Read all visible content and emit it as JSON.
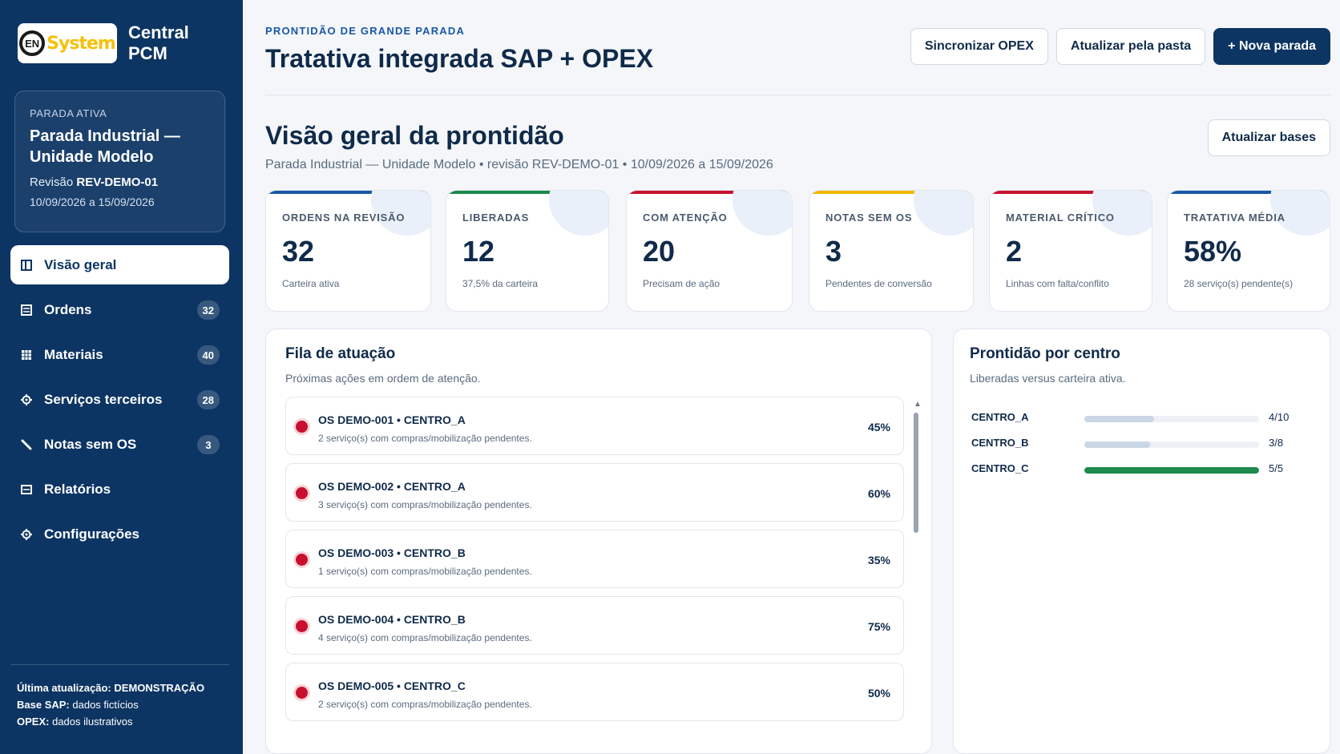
{
  "brand": {
    "logo_text": "System",
    "logo_mark": "EN",
    "title_line1": "Central",
    "title_line2": "PCM"
  },
  "active_stop": {
    "label": "PARADA ATIVA",
    "name": "Parada Industrial — Unidade Modelo",
    "revision_label": "Revisão",
    "revision": "REV-DEMO-01",
    "dates": "10/09/2026 a 15/09/2026"
  },
  "nav": {
    "items": [
      {
        "label": "Visão geral",
        "icon": "layout-icon",
        "badge": ""
      },
      {
        "label": "Ordens",
        "icon": "list-icon",
        "badge": "32"
      },
      {
        "label": "Materiais",
        "icon": "grid-icon",
        "badge": "40"
      },
      {
        "label": "Serviços terceiros",
        "icon": "gear-icon",
        "badge": "28"
      },
      {
        "label": "Notas sem OS",
        "icon": "pencil-icon",
        "badge": "3"
      },
      {
        "label": "Relatórios",
        "icon": "report-icon",
        "badge": ""
      },
      {
        "label": "Configurações",
        "icon": "gear-icon",
        "badge": ""
      }
    ]
  },
  "footer": {
    "update_label": "Última atualização:",
    "update_value": "DEMONSTRAÇÃO",
    "sap_label": "Base SAP:",
    "sap_value": "dados fictícios",
    "opex_label": "OPEX:",
    "opex_value": "dados ilustrativos"
  },
  "header": {
    "eyebrow": "PRONTIDÃO DE GRANDE PARADA",
    "title": "Tratativa integrada SAP + OPEX",
    "btn_sync": "Sincronizar OPEX",
    "btn_folder": "Atualizar pela pasta",
    "btn_new": "+ Nova parada"
  },
  "overview": {
    "title": "Visão geral da prontidão",
    "subtitle": "Parada Industrial — Unidade Modelo • revisão REV-DEMO-01 • 10/09/2026 a 15/09/2026",
    "btn_bases": "Atualizar bases"
  },
  "kpis": [
    {
      "label": "ORDENS NA REVISÃO",
      "value": "32",
      "note": "Carteira ativa",
      "color": "#1957a8"
    },
    {
      "label": "LIBERADAS",
      "value": "12",
      "note": "37,5% da carteira",
      "color": "#1b8a4a"
    },
    {
      "label": "COM ATENÇÃO",
      "value": "20",
      "note": "Precisam de ação",
      "color": "#c8102e"
    },
    {
      "label": "NOTAS SEM OS",
      "value": "3",
      "note": "Pendentes de conversão",
      "color": "#f2b705"
    },
    {
      "label": "MATERIAL CRÍTICO",
      "value": "2",
      "note": "Linhas com falta/conflito",
      "color": "#c8102e"
    },
    {
      "label": "TRATATIVA MÉDIA",
      "value": "58%",
      "note": "28 serviço(s) pendente(s)",
      "color": "#1957a8"
    }
  ],
  "queue": {
    "title": "Fila de atuação",
    "subtitle": "Próximas ações em ordem de atenção.",
    "items": [
      {
        "title": "OS DEMO-001 • CENTRO_A",
        "desc": "2 serviço(s) com compras/mobilização pendentes.",
        "pct": "45%"
      },
      {
        "title": "OS DEMO-002 • CENTRO_A",
        "desc": "3 serviço(s) com compras/mobilização pendentes.",
        "pct": "60%"
      },
      {
        "title": "OS DEMO-003 • CENTRO_B",
        "desc": "1 serviço(s) com compras/mobilização pendentes.",
        "pct": "35%"
      },
      {
        "title": "OS DEMO-004 • CENTRO_B",
        "desc": "4 serviço(s) com compras/mobilização pendentes.",
        "pct": "75%"
      },
      {
        "title": "OS DEMO-005 • CENTRO_C",
        "desc": "2 serviço(s) com compras/mobilização pendentes.",
        "pct": "50%"
      }
    ]
  },
  "centers": {
    "title": "Prontidão por centro",
    "subtitle": "Liberadas versus carteira ativa.",
    "rows": [
      {
        "name": "CENTRO_A",
        "released": 4,
        "total": 10,
        "count": "4/10"
      },
      {
        "name": "CENTRO_B",
        "released": 3,
        "total": 8,
        "count": "3/8"
      },
      {
        "name": "CENTRO_C",
        "released": 5,
        "total": 5,
        "count": "5/5"
      }
    ]
  }
}
